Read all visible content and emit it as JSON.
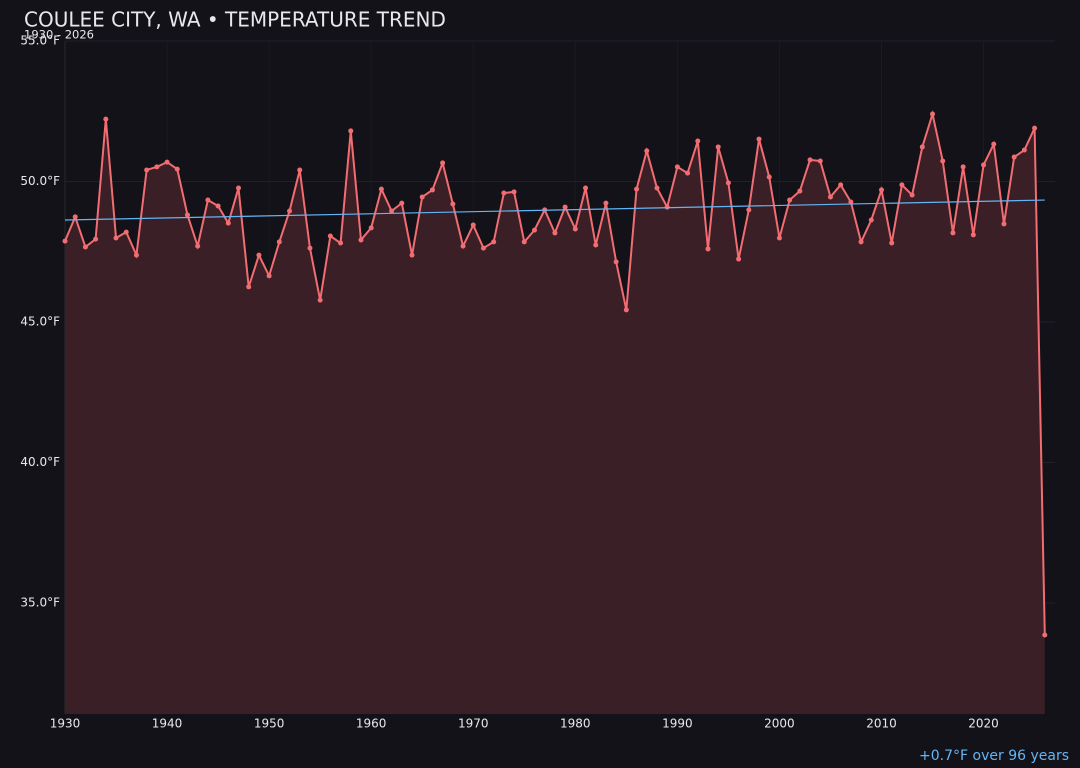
{
  "chart_data": {
    "type": "line",
    "title": "COULEE CITY, WA • TEMPERATURE TREND",
    "subtitle": "1930 - 2026",
    "annotation": "+0.7°F over 96 years",
    "x": [
      1930,
      1931,
      1932,
      1933,
      1934,
      1935,
      1936,
      1937,
      1938,
      1939,
      1940,
      1941,
      1942,
      1943,
      1944,
      1945,
      1946,
      1947,
      1948,
      1949,
      1950,
      1951,
      1952,
      1953,
      1954,
      1955,
      1956,
      1957,
      1958,
      1959,
      1960,
      1961,
      1962,
      1963,
      1964,
      1965,
      1966,
      1967,
      1968,
      1969,
      1970,
      1971,
      1972,
      1973,
      1974,
      1975,
      1976,
      1977,
      1978,
      1979,
      1980,
      1981,
      1982,
      1983,
      1984,
      1985,
      1986,
      1987,
      1988,
      1989,
      1990,
      1991,
      1992,
      1993,
      1994,
      1995,
      1996,
      1997,
      1998,
      1999,
      2000,
      2001,
      2002,
      2003,
      2004,
      2005,
      2006,
      2007,
      2008,
      2009,
      2010,
      2011,
      2012,
      2013,
      2014,
      2015,
      2016,
      2017,
      2018,
      2019,
      2020,
      2021,
      2022,
      2023,
      2024,
      2025,
      2026
    ],
    "series": [
      {
        "color": "#f26d72",
        "fill": "#3a1f26",
        "values": [
          47.88,
          48.74,
          47.67,
          47.95,
          52.22,
          47.99,
          48.2,
          47.38,
          50.41,
          50.52,
          50.69,
          50.44,
          48.81,
          47.7,
          49.34,
          49.13,
          48.52,
          49.77,
          46.25,
          47.38,
          46.64,
          47.85,
          48.95,
          50.41,
          47.63,
          45.78,
          48.06,
          47.81,
          51.8,
          47.92,
          48.35,
          49.73,
          48.95,
          49.23,
          47.38,
          49.45,
          49.7,
          50.66,
          49.2,
          47.7,
          48.45,
          47.63,
          47.85,
          49.59,
          49.63,
          47.85,
          48.27,
          48.99,
          48.17,
          49.09,
          48.31,
          49.77,
          47.74,
          49.23,
          47.14,
          45.43,
          49.73,
          51.09,
          49.77,
          49.09,
          50.52,
          50.3,
          51.44,
          47.6,
          51.23,
          49.95,
          47.24,
          48.99,
          51.51,
          50.16,
          47.99,
          49.34,
          49.66,
          50.77,
          50.73,
          49.45,
          49.88,
          49.27,
          47.85,
          48.63,
          49.7,
          47.81,
          49.88,
          49.52,
          51.23,
          52.4,
          50.73,
          48.17,
          50.52,
          48.1,
          50.59,
          51.33,
          48.49,
          50.87,
          51.12,
          51.9,
          33.86
        ]
      }
    ],
    "trend": {
      "x": [
        1930,
        2026
      ],
      "values": [
        48.63,
        49.34
      ],
      "color": "#64b5f6"
    },
    "xlim": [
      1930,
      2027
    ],
    "xticks": [
      1930,
      1940,
      1950,
      1960,
      1970,
      1980,
      1990,
      2000,
      2010,
      2020
    ],
    "ylim": [
      31.05,
      55
    ],
    "yticks": [
      {
        "value": 35,
        "label": "35.0°F"
      },
      {
        "value": 40,
        "label": "40.0°F"
      },
      {
        "value": 45,
        "label": "45.0°F"
      },
      {
        "value": 50,
        "label": "50.0°F"
      },
      {
        "value": 55,
        "label": "55.0°F"
      }
    ],
    "grid": true
  }
}
